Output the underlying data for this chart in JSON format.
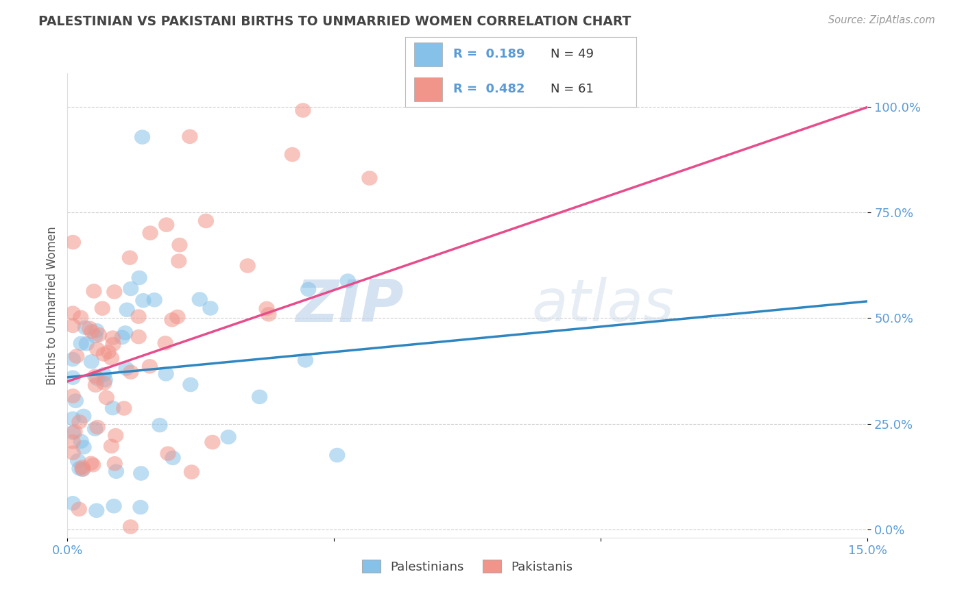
{
  "title": "PALESTINIAN VS PAKISTANI BIRTHS TO UNMARRIED WOMEN CORRELATION CHART",
  "source": "Source: ZipAtlas.com",
  "ylabel": "Births to Unmarried Women",
  "xlim": [
    0.0,
    0.15
  ],
  "ylim": [
    -0.02,
    1.08
  ],
  "ytick_vals": [
    0.0,
    0.25,
    0.5,
    0.75,
    1.0
  ],
  "ytick_labels": [
    "0.0%",
    "25.0%",
    "50.0%",
    "75.0%",
    "100.0%"
  ],
  "xtick_vals": [
    0.0,
    0.05,
    0.1,
    0.15
  ],
  "xtick_labels": [
    "0.0%",
    "",
    "",
    "15.0%"
  ],
  "palestinian_R": 0.189,
  "palestinian_N": 49,
  "pakistani_R": 0.482,
  "pakistani_N": 61,
  "palestinian_color": "#85c1e9",
  "pakistani_color": "#f1948a",
  "palestinian_line_color": "#2e86c1",
  "pakistani_line_color": "#e74c8b",
  "watermark_zip": "ZIP",
  "watermark_atlas": "atlas",
  "background_color": "#ffffff",
  "grid_color": "#c8c8c8",
  "title_color": "#444444",
  "pal_line_y0": 0.36,
  "pal_line_y1": 0.54,
  "pak_line_y0": 0.35,
  "pak_line_y1": 1.0
}
